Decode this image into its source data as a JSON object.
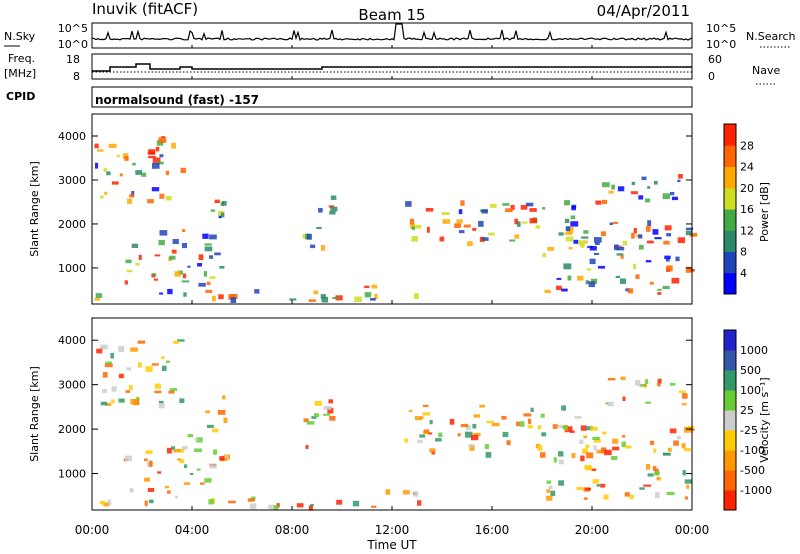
{
  "header": {
    "station": "Inuvik (fitACF)",
    "beam": "Beam 15",
    "date": "04/Apr/2011"
  },
  "noise_panel": {
    "left_label": "N.Sky",
    "right_label": "N.Search",
    "left_ticks": [
      "10^5",
      "10^0"
    ],
    "right_ticks": [
      "10^5",
      "10^0"
    ]
  },
  "freq_panel": {
    "left_label": "Freq.",
    "left_unit": "[MHz]",
    "right_label": "Nave",
    "left_ticks": [
      "18",
      "8"
    ],
    "right_ticks": [
      "60",
      "0"
    ]
  },
  "cpid": {
    "label": "CPID",
    "value": "normalsound (fast) -157"
  },
  "xaxis": {
    "label": "Time UT",
    "ticks": [
      "00:00",
      "04:00",
      "08:00",
      "12:00",
      "16:00",
      "20:00",
      "00:00"
    ]
  },
  "colors": {
    "power": [
      "#0000ff",
      "#2244bb",
      "#2a8a6a",
      "#44aa44",
      "#ccdd22",
      "#ffaa00",
      "#ff6600",
      "#ff2200"
    ],
    "velocity": [
      "#ff2200",
      "#ff6600",
      "#ff9900",
      "#ffcc00",
      "#cccccc",
      "#66cc33",
      "#339966",
      "#3355aa",
      "#2222cc"
    ]
  },
  "chart_data": [
    {
      "type": "heatmap",
      "ylabel": "Slant Range [km]",
      "xlabel": "Time UT",
      "ylim": [
        180,
        4500
      ],
      "xlim": [
        "00:00",
        "24:00"
      ],
      "yticks": [
        "1000",
        "2000",
        "3000",
        "4000"
      ],
      "colorbar_label": "Power [dB]",
      "colorbar_ticks": [
        "4",
        "8",
        "12",
        "16",
        "20",
        "24",
        "28"
      ]
    },
    {
      "type": "heatmap",
      "ylabel": "Slant Range [km]",
      "xlabel": "Time UT",
      "ylim": [
        180,
        4500
      ],
      "xlim": [
        "00:00",
        "24:00"
      ],
      "yticks": [
        "1000",
        "2000",
        "3000",
        "4000"
      ],
      "colorbar_label": "Velocity [m s⁻¹]",
      "colorbar_ticks": [
        "1000",
        "500",
        "100",
        "25",
        "-25",
        "-100",
        "-500",
        "-1000"
      ]
    }
  ]
}
